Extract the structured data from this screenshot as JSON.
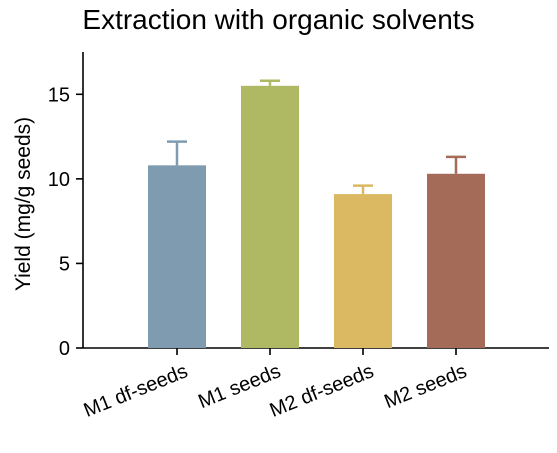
{
  "chart_data": {
    "type": "bar",
    "title": "Extraction with organic solvents",
    "xlabel": "",
    "ylabel": "Yield (mg/g seeds)",
    "ylim": [
      0,
      17.5
    ],
    "yticks": [
      0,
      5,
      10,
      15
    ],
    "categories": [
      "M1 df-seeds",
      "M1 seeds",
      "M2 df-seeds",
      "M2 seeds"
    ],
    "values": [
      10.8,
      15.5,
      9.1,
      10.3
    ],
    "errors": [
      1.4,
      0.3,
      0.5,
      1.0
    ],
    "colors": [
      "#7f9bb0",
      "#afb862",
      "#dbb962",
      "#a46b59"
    ],
    "grid": false,
    "legend": "none"
  }
}
